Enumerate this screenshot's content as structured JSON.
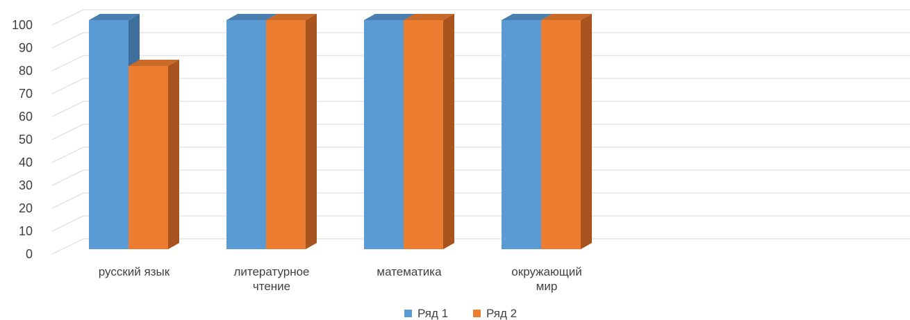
{
  "chart_data": {
    "type": "bar",
    "categories": [
      [
        "русский язык"
      ],
      [
        "литературное",
        "чтение"
      ],
      [
        "математика"
      ],
      [
        "окружающий",
        "мир"
      ]
    ],
    "series": [
      {
        "name": "Ряд 1",
        "values": [
          100,
          100,
          100,
          100
        ],
        "color": "#5B9BD5",
        "side_color": "#3E6F9C",
        "top_color": "#4A7FB0"
      },
      {
        "name": "Ряд 2",
        "values": [
          80,
          100,
          100,
          100
        ],
        "color": "#ED7D31",
        "side_color": "#A9541E",
        "top_color": "#C96A28"
      }
    ],
    "ylim": [
      0,
      100
    ],
    "yticks": [
      0,
      10,
      20,
      30,
      40,
      50,
      60,
      70,
      80,
      90,
      100
    ],
    "grid": true,
    "legend_position": "bottom",
    "three_d": true
  }
}
